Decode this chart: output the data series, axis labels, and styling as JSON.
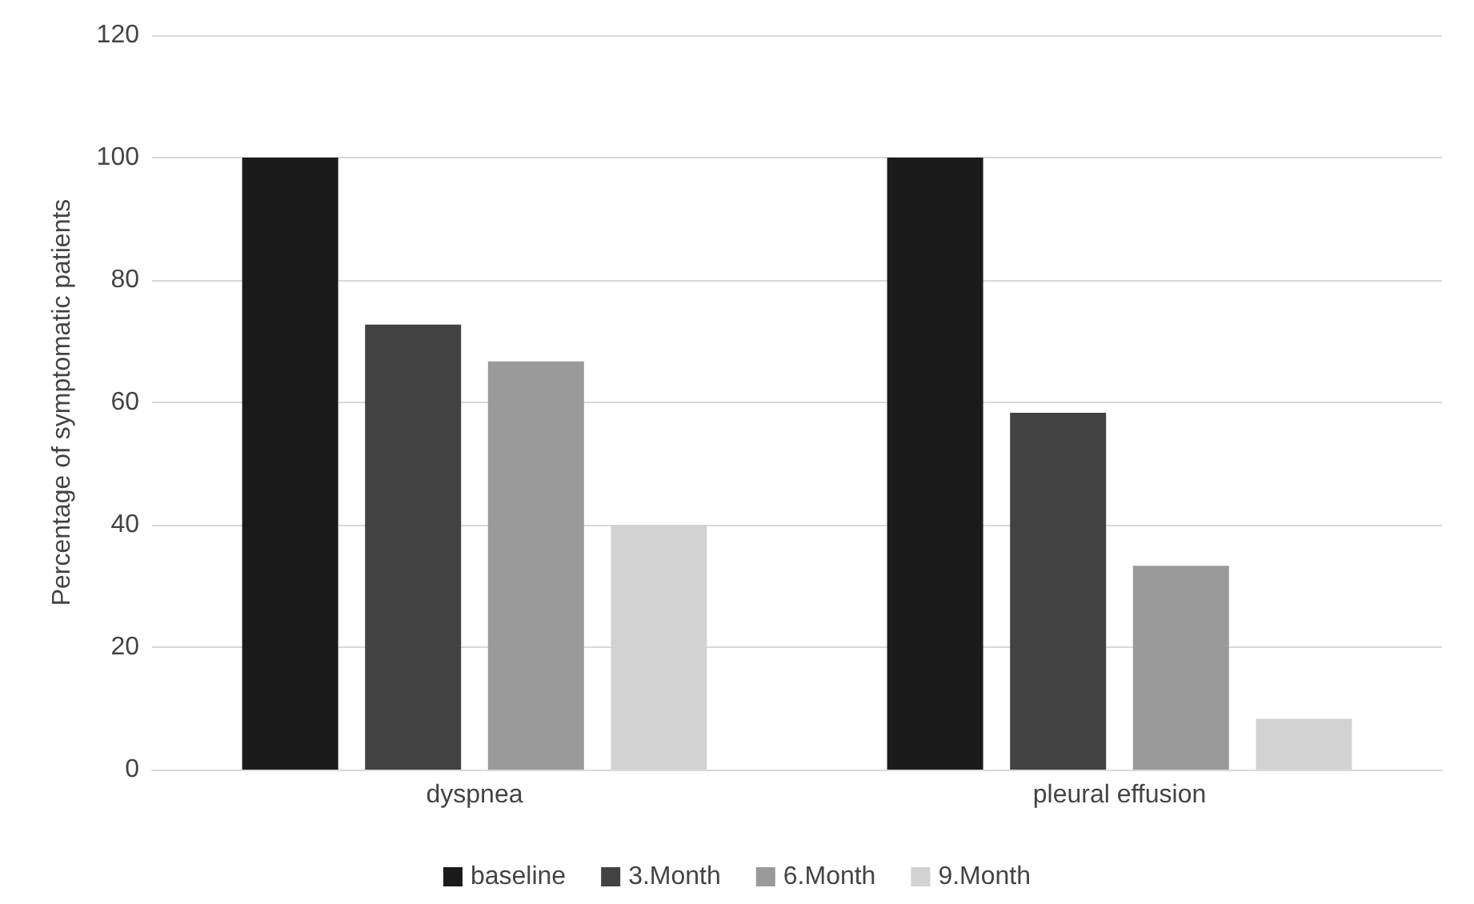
{
  "chart_data": {
    "type": "bar",
    "ylabel": "Percentage of symptomatic patients",
    "categories": [
      "dyspnea",
      "pleural effusion"
    ],
    "series": [
      {
        "name": "baseline",
        "color": "#1a1a1a",
        "values": [
          100,
          100
        ]
      },
      {
        "name": "3.Month",
        "color": "#424242",
        "values": [
          72.7,
          58.3
        ]
      },
      {
        "name": "6.Month",
        "color": "#9a9a9a",
        "values": [
          66.7,
          33.3
        ]
      },
      {
        "name": "9.Month",
        "color": "#d2d2d2",
        "values": [
          40,
          8.3
        ]
      }
    ],
    "ylim": [
      0,
      120
    ],
    "yticks": [
      0,
      20,
      40,
      60,
      80,
      100,
      120
    ],
    "grid": "y",
    "legend": "bottom"
  }
}
